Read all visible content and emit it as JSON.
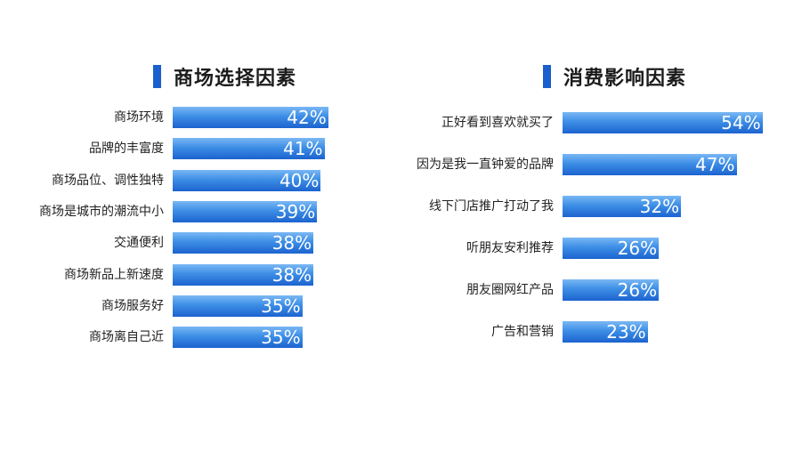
{
  "chart_data": [
    {
      "type": "bar",
      "orientation": "horizontal",
      "title": "商场选择因素",
      "categories": [
        "商场环境",
        "品牌的丰富度",
        "商场品位、调性独特",
        "商场是城市的潮流中小",
        "交通便利",
        "商场新品上新速度",
        "商场服务好",
        "商场离自己近"
      ],
      "values": [
        42,
        41,
        40,
        39,
        38,
        38,
        35,
        35
      ],
      "value_labels": [
        "42%",
        "41%",
        "40%",
        "39%",
        "38%",
        "38%",
        "35%",
        "35%"
      ],
      "xlim": [
        0,
        100
      ],
      "grid": false
    },
    {
      "type": "bar",
      "orientation": "horizontal",
      "title": "消费影响因素",
      "categories": [
        "正好看到喜欢就买了",
        "因为是我一直钟爱的品牌",
        "线下门店推广打动了我",
        "听朋友安利推荐",
        "朋友圈网红产品",
        "广告和营销"
      ],
      "values": [
        54,
        47,
        32,
        26,
        26,
        23
      ],
      "value_labels": [
        "54%",
        "47%",
        "32%",
        "26%",
        "26%",
        "23%"
      ],
      "xlim": [
        0,
        100
      ],
      "grid": false
    }
  ],
  "colors": {
    "accent": "#1a5fcc",
    "bar_top": "#7ab8f4",
    "bar_bottom": "#1c63cf",
    "value_text": "#ffffff"
  }
}
